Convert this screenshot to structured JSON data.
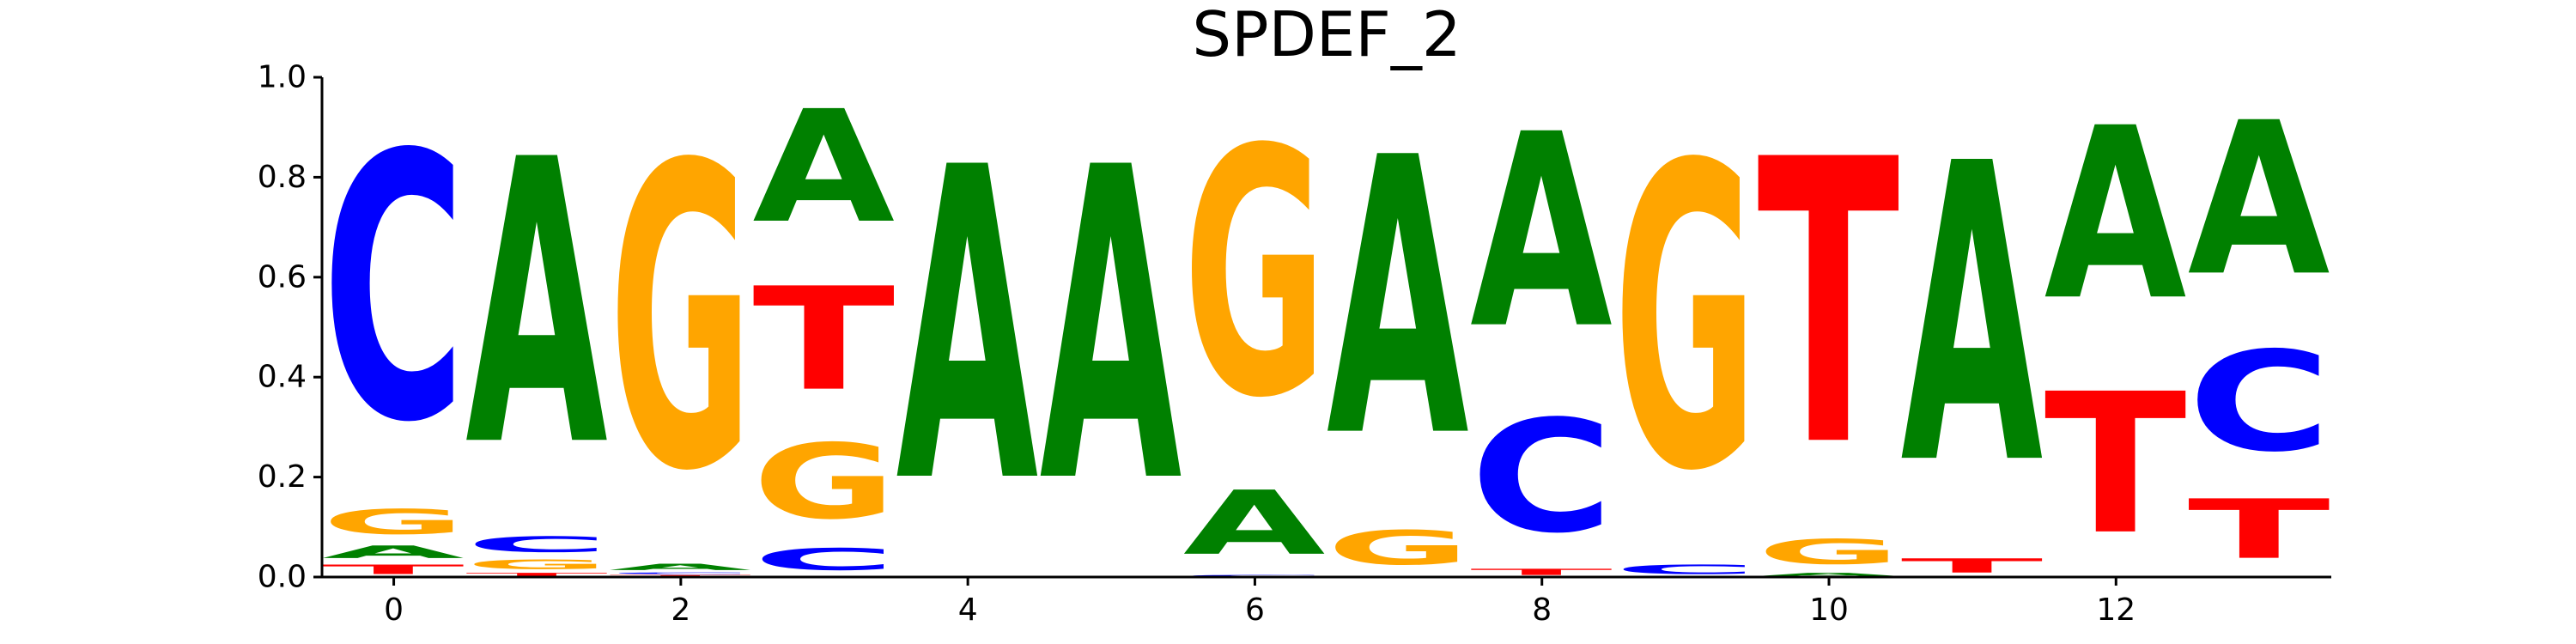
{
  "chart_data": {
    "type": "sequence-logo",
    "title": "SPDEF_2",
    "xlabel": "",
    "ylabel": "",
    "xlim": [
      -0.5,
      13.5
    ],
    "ylim": [
      0,
      1
    ],
    "x_ticks": [
      0,
      2,
      4,
      6,
      8,
      10,
      12
    ],
    "y_ticks": [
      "0.0",
      "0.2",
      "0.4",
      "0.6",
      "0.8",
      "1.0"
    ],
    "grid": false,
    "colors": {
      "A": "#008000",
      "C": "#0000ff",
      "G": "#ffa500",
      "T": "#ff0000"
    },
    "positions": [
      {
        "pos": 0,
        "letters": [
          [
            "T",
            0.03
          ],
          [
            "A",
            0.04
          ],
          [
            "G",
            0.08
          ],
          [
            "C",
            0.85
          ]
        ]
      },
      {
        "pos": 1,
        "letters": [
          [
            "T",
            0.01
          ],
          [
            "G",
            0.03
          ],
          [
            "C",
            0.05
          ],
          [
            "A",
            0.91
          ]
        ]
      },
      {
        "pos": 2,
        "letters": [
          [
            "T",
            0.005
          ],
          [
            "C",
            0.005
          ],
          [
            "A",
            0.02
          ],
          [
            "G",
            0.97
          ]
        ]
      },
      {
        "pos": 3,
        "letters": [
          [
            "C",
            0.07
          ],
          [
            "G",
            0.24
          ],
          [
            "T",
            0.33
          ],
          [
            "A",
            0.36
          ]
        ]
      },
      {
        "pos": 4,
        "letters": [
          [
            "A",
            1.0
          ]
        ]
      },
      {
        "pos": 5,
        "letters": [
          [
            "A",
            1.0
          ]
        ]
      },
      {
        "pos": 6,
        "letters": [
          [
            "C",
            0.005
          ],
          [
            "A",
            0.205
          ],
          [
            "G",
            0.79
          ]
        ]
      },
      {
        "pos": 7,
        "letters": [
          [
            "C",
            0.003
          ],
          [
            "G",
            0.11
          ],
          [
            "A",
            0.887
          ]
        ]
      },
      {
        "pos": 8,
        "letters": [
          [
            "T",
            0.02
          ],
          [
            "C",
            0.36
          ],
          [
            "A",
            0.62
          ]
        ]
      },
      {
        "pos": 9,
        "letters": [
          [
            "C",
            0.03
          ],
          [
            "G",
            0.97
          ]
        ]
      },
      {
        "pos": 10,
        "letters": [
          [
            "A",
            0.01
          ],
          [
            "G",
            0.08
          ],
          [
            "T",
            0.91
          ]
        ]
      },
      {
        "pos": 11,
        "letters": [
          [
            "T",
            0.045
          ],
          [
            "A",
            0.955
          ]
        ]
      },
      {
        "pos": 12,
        "letters": [
          [
            "T",
            0.45
          ],
          [
            "A",
            0.55
          ]
        ]
      },
      {
        "pos": 13,
        "letters": [
          [
            "T",
            0.19
          ],
          [
            "C",
            0.32
          ],
          [
            "A",
            0.49
          ]
        ]
      }
    ]
  }
}
